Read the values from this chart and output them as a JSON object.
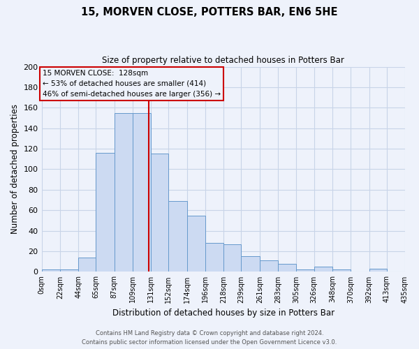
{
  "title": "15, MORVEN CLOSE, POTTERS BAR, EN6 5HE",
  "subtitle": "Size of property relative to detached houses in Potters Bar",
  "xlabel": "Distribution of detached houses by size in Potters Bar",
  "ylabel": "Number of detached properties",
  "bin_edges": [
    0,
    22,
    44,
    65,
    87,
    109,
    131,
    152,
    174,
    196,
    218,
    239,
    261,
    283,
    305,
    326,
    348,
    370,
    392,
    413,
    435
  ],
  "bin_labels": [
    "0sqm",
    "22sqm",
    "44sqm",
    "65sqm",
    "87sqm",
    "109sqm",
    "131sqm",
    "152sqm",
    "174sqm",
    "196sqm",
    "218sqm",
    "239sqm",
    "261sqm",
    "283sqm",
    "305sqm",
    "326sqm",
    "348sqm",
    "370sqm",
    "392sqm",
    "413sqm",
    "435sqm"
  ],
  "counts": [
    2,
    2,
    14,
    116,
    155,
    155,
    115,
    69,
    55,
    28,
    27,
    15,
    11,
    8,
    2,
    5,
    2,
    0,
    3,
    0
  ],
  "bar_facecolor": "#ccdaf2",
  "bar_edgecolor": "#6699cc",
  "grid_color": "#c8d4e8",
  "background_color": "#eef2fb",
  "vline_x": 128,
  "vline_color": "#cc0000",
  "annotation_title": "15 MORVEN CLOSE:  128sqm",
  "annotation_line1": "← 53% of detached houses are smaller (414)",
  "annotation_line2": "46% of semi-detached houses are larger (356) →",
  "annotation_box_edgecolor": "#cc0000",
  "ylim": [
    0,
    200
  ],
  "yticks": [
    0,
    20,
    40,
    60,
    80,
    100,
    120,
    140,
    160,
    180,
    200
  ],
  "footer1": "Contains HM Land Registry data © Crown copyright and database right 2024.",
  "footer2": "Contains public sector information licensed under the Open Government Licence v3.0."
}
